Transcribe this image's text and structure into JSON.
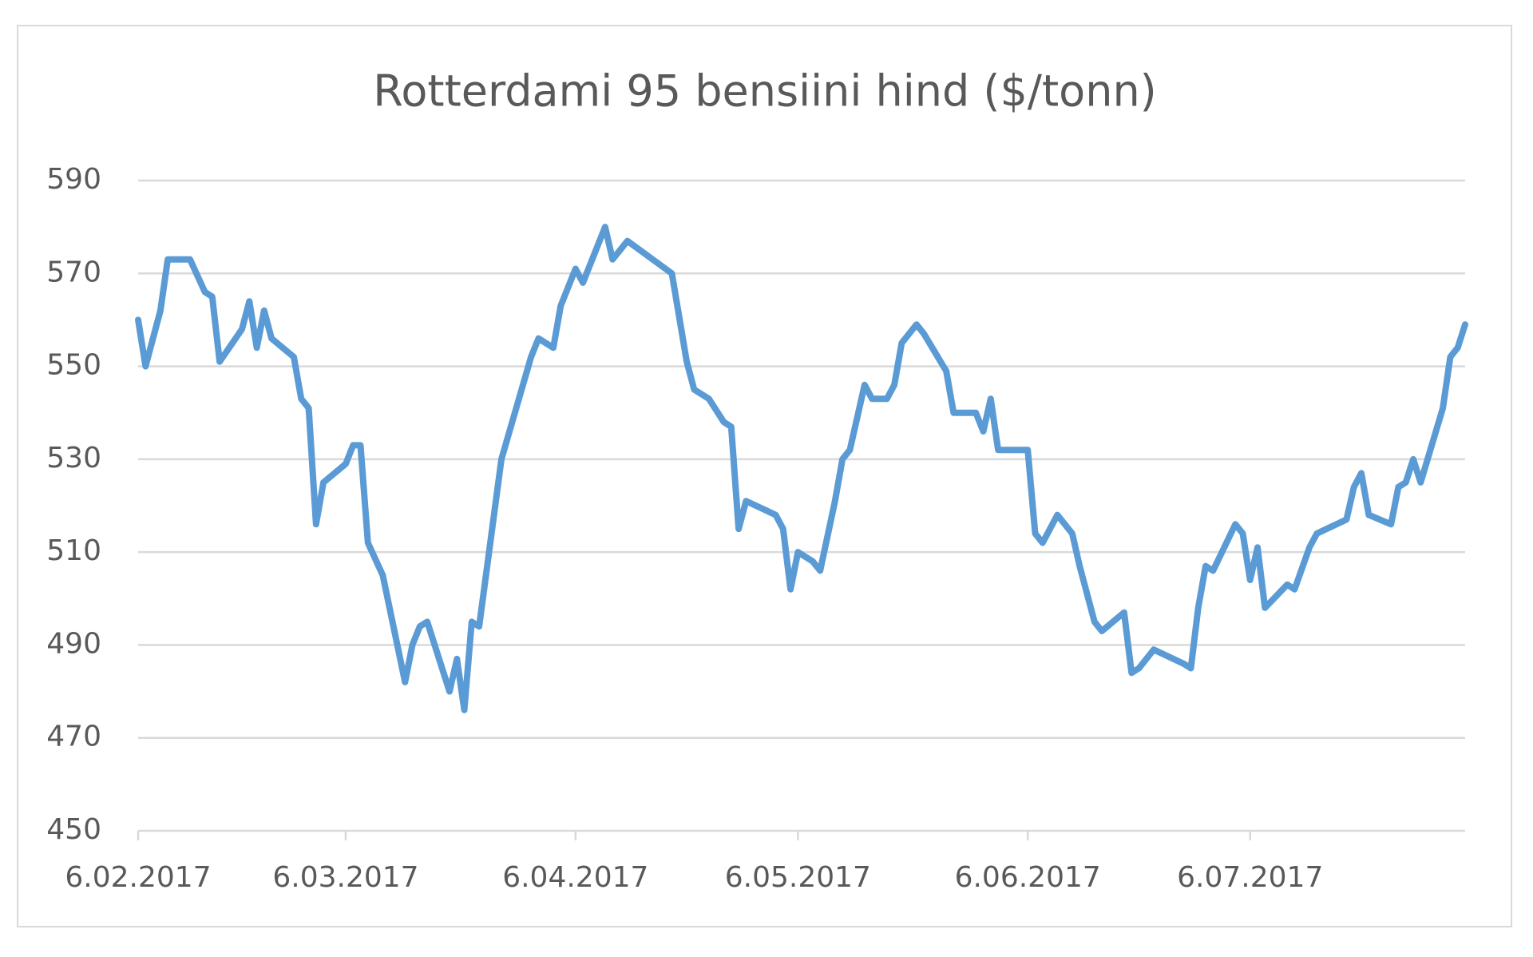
{
  "chart_data": {
    "type": "line",
    "title": "Rotterdami 95 bensiini hind ($/tonn)",
    "x": [
      "2017-02-06",
      "2017-02-07",
      "2017-02-08",
      "2017-02-09",
      "2017-02-10",
      "2017-02-13",
      "2017-02-15",
      "2017-02-16",
      "2017-02-17",
      "2017-02-20",
      "2017-02-21",
      "2017-02-22",
      "2017-02-23",
      "2017-02-24",
      "2017-02-27",
      "2017-02-28",
      "2017-03-01",
      "2017-03-02",
      "2017-03-03",
      "2017-03-06",
      "2017-03-07",
      "2017-03-08",
      "2017-03-09",
      "2017-03-11",
      "2017-03-14",
      "2017-03-15",
      "2017-03-16",
      "2017-03-17",
      "2017-03-20",
      "2017-03-21",
      "2017-03-22",
      "2017-03-23",
      "2017-03-24",
      "2017-03-27",
      "2017-03-31",
      "2017-04-01",
      "2017-04-03",
      "2017-04-04",
      "2017-04-06",
      "2017-04-07",
      "2017-04-10",
      "2017-04-11",
      "2017-04-13",
      "2017-04-19",
      "2017-04-21",
      "2017-04-22",
      "2017-04-24",
      "2017-04-26",
      "2017-04-27",
      "2017-04-28",
      "2017-04-29",
      "2017-05-03",
      "2017-05-04",
      "2017-05-05",
      "2017-05-06",
      "2017-05-08",
      "2017-05-09",
      "2017-05-11",
      "2017-05-12",
      "2017-05-13",
      "2017-05-15",
      "2017-05-16",
      "2017-05-18",
      "2017-05-19",
      "2017-05-20",
      "2017-05-22",
      "2017-05-23",
      "2017-05-26",
      "2017-05-27",
      "2017-05-30",
      "2017-05-31",
      "2017-06-01",
      "2017-06-02",
      "2017-06-06",
      "2017-06-07",
      "2017-06-08",
      "2017-06-10",
      "2017-06-12",
      "2017-06-13",
      "2017-06-15",
      "2017-06-16",
      "2017-06-19",
      "2017-06-20",
      "2017-06-21",
      "2017-06-23",
      "2017-06-27",
      "2017-06-28",
      "2017-06-29",
      "2017-06-30",
      "2017-07-01",
      "2017-07-04",
      "2017-07-05",
      "2017-07-06",
      "2017-07-07",
      "2017-07-08",
      "2017-07-11",
      "2017-07-12",
      "2017-07-14",
      "2017-07-15",
      "2017-07-19",
      "2017-07-20",
      "2017-07-21",
      "2017-07-22",
      "2017-07-25",
      "2017-07-26",
      "2017-07-27",
      "2017-07-28",
      "2017-07-29",
      "2017-08-01",
      "2017-08-02",
      "2017-08-03",
      "2017-08-04"
    ],
    "values": [
      560,
      550,
      556,
      562,
      573,
      573,
      566,
      565,
      551,
      558,
      564,
      554,
      562,
      556,
      552,
      543,
      541,
      516,
      525,
      529,
      533,
      533,
      512,
      505,
      482,
      490,
      494,
      495,
      480,
      487,
      476,
      495,
      494,
      530,
      552,
      556,
      554,
      563,
      571,
      568,
      580,
      573,
      577,
      570,
      551,
      545,
      543,
      538,
      537,
      515,
      521,
      518,
      515,
      502,
      510,
      508,
      506,
      521,
      530,
      532,
      546,
      543,
      543,
      546,
      555,
      559,
      557,
      549,
      540,
      540,
      536,
      543,
      532,
      532,
      514,
      512,
      518,
      514,
      507,
      495,
      493,
      497,
      484,
      485,
      489,
      486,
      485,
      498,
      507,
      506,
      516,
      514,
      504,
      511,
      498,
      503,
      502,
      511,
      514,
      517,
      524,
      527,
      518,
      516,
      524,
      525,
      530,
      525,
      541,
      552,
      554,
      559
    ],
    "color": "#5b9bd5",
    "xlim": [
      "2017-02-06",
      "2017-08-04"
    ],
    "xticks": [
      {
        "value": "2017-02-06",
        "label": "6.02.2017"
      },
      {
        "value": "2017-03-06",
        "label": "6.03.2017"
      },
      {
        "value": "2017-04-06",
        "label": "6.04.2017"
      },
      {
        "value": "2017-05-06",
        "label": "6.05.2017"
      },
      {
        "value": "2017-06-06",
        "label": "6.06.2017"
      },
      {
        "value": "2017-07-06",
        "label": "6.07.2017"
      }
    ],
    "ylim": [
      450,
      590
    ],
    "yticks": [
      450,
      470,
      490,
      510,
      530,
      550,
      570,
      590
    ],
    "grid": true
  }
}
